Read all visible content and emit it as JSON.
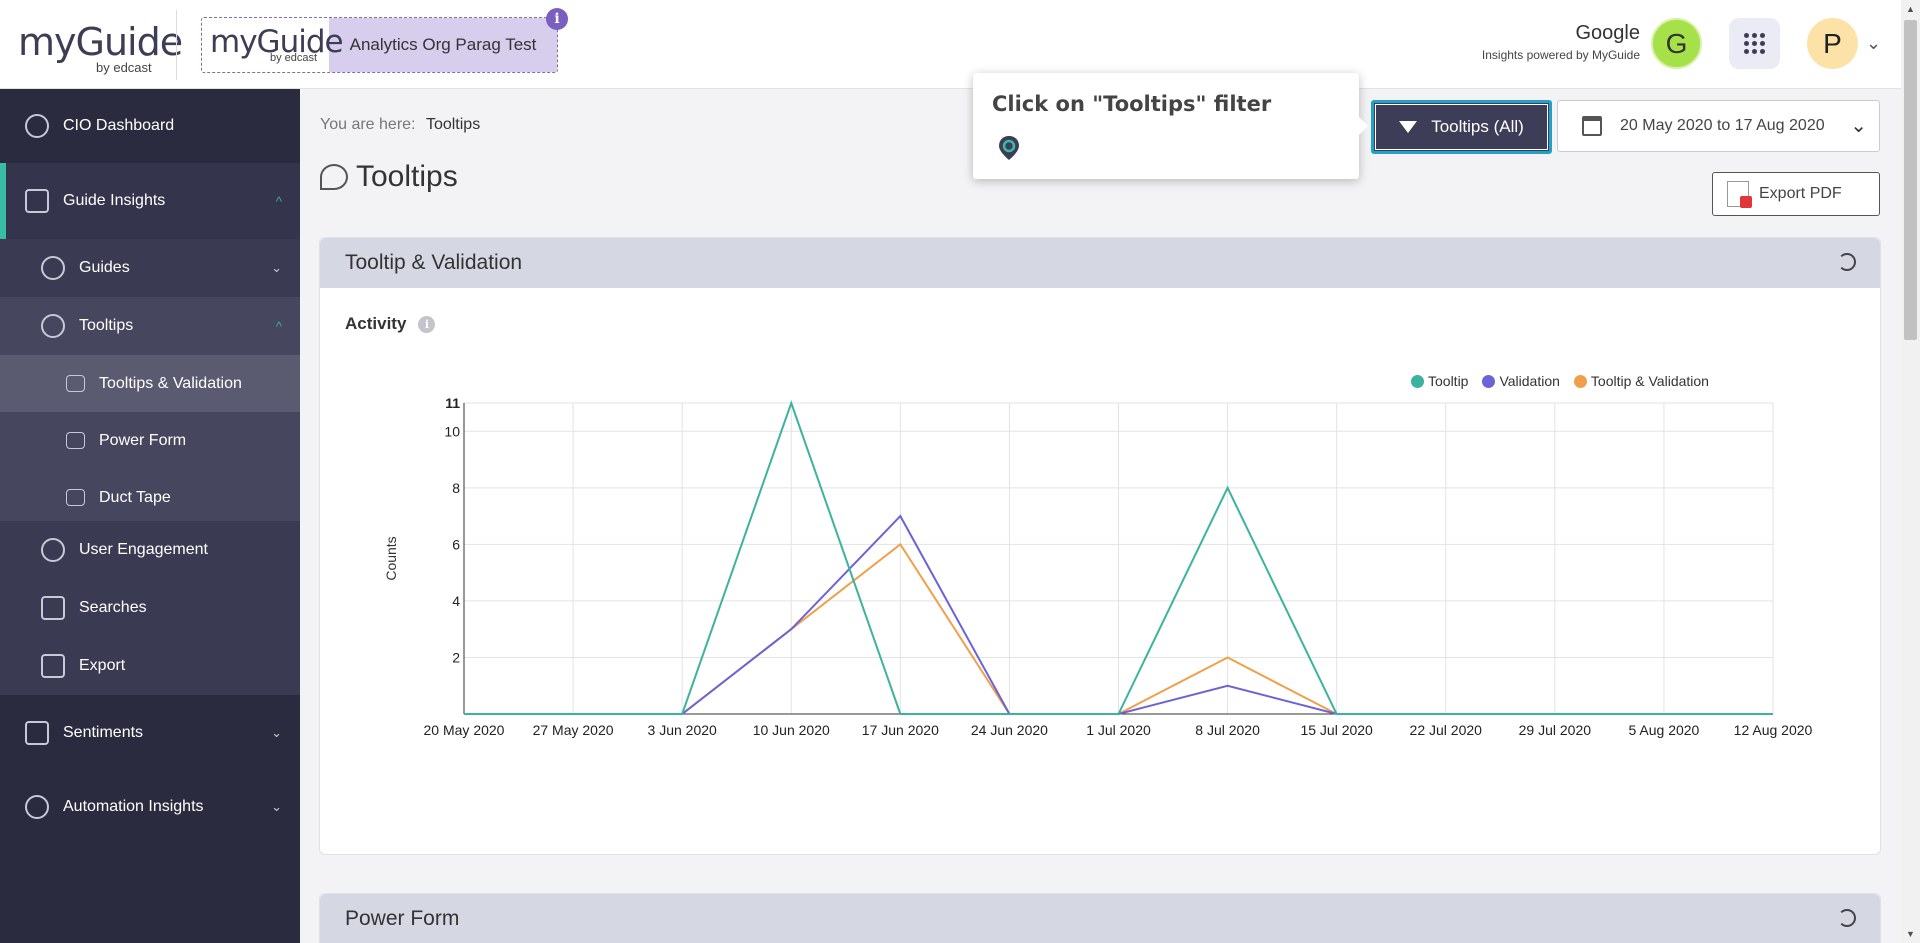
{
  "header": {
    "logo_text": "myGuide",
    "logo_by": "by edcast",
    "org_logo_text": "myGuide",
    "org_logo_by": "by edcast",
    "org_name": "Analytics Org Parag Test",
    "info_icon": "i",
    "account_name": "Google",
    "account_sub": "Insights powered by MyGuide",
    "account_initial": "G",
    "user_initial": "P",
    "user_chevron": "⌄"
  },
  "sidebar": {
    "items": [
      {
        "label": "CIO Dashboard",
        "icon": "gauge-icon"
      },
      {
        "label": "Guide Insights",
        "icon": "chart-icon"
      },
      {
        "label": "Guides",
        "icon": "compass-icon"
      },
      {
        "label": "Tooltips",
        "icon": "chat-bubbles-icon"
      },
      {
        "label": "Tooltips & Validation",
        "icon": "check-box-icon"
      },
      {
        "label": "Power Form",
        "icon": "form-icon"
      },
      {
        "label": "Duct Tape",
        "icon": "code-icon"
      },
      {
        "label": "User Engagement",
        "icon": "user-icon"
      },
      {
        "label": "Searches",
        "icon": "search-doc-icon"
      },
      {
        "label": "Export",
        "icon": "export-icon"
      },
      {
        "label": "Sentiments",
        "icon": "survey-icon"
      },
      {
        "label": "Automation Insights",
        "icon": "gear-icon"
      }
    ],
    "chevron_down": "⌄",
    "chevron_up": "^"
  },
  "breadcrumb": {
    "prefix": "You are here:",
    "current": "Tooltips"
  },
  "page_title": "Tooltips",
  "tooltip_popup": {
    "message": "Click on \"Tooltips\" filter"
  },
  "filter_button": {
    "label": "Tooltips (All)"
  },
  "date_picker": {
    "label": "20 May 2020 to 17 Aug 2020"
  },
  "export_button": {
    "label": "Export PDF"
  },
  "panels": {
    "tooltip_validation": {
      "title": "Tooltip & Validation",
      "section": "Activity",
      "info": "i"
    },
    "power_form": {
      "title": "Power Form"
    }
  },
  "colors": {
    "tooltip": "#3bb39e",
    "validation": "#6b63d6",
    "tooltip_validation": "#f0a04b",
    "sidebar_bg": "#2b2b40",
    "accent": "#38bca4"
  },
  "chart_data": {
    "type": "line",
    "ylabel": "Counts",
    "xlabel": "",
    "categories": [
      "20 May 2020",
      "27 May 2020",
      "3 Jun 2020",
      "10 Jun 2020",
      "17 Jun 2020",
      "24 Jun 2020",
      "1 Jul 2020",
      "8 Jul 2020",
      "15 Jul 2020",
      "22 Jul 2020",
      "29 Jul 2020",
      "5 Aug 2020",
      "12 Aug 2020"
    ],
    "ylim": [
      0,
      11
    ],
    "y_ticks": [
      2,
      4,
      6,
      8,
      10,
      11
    ],
    "grid": true,
    "legend": "top-right",
    "series": [
      {
        "name": "Tooltip",
        "color": "#3bb39e",
        "values": [
          0,
          0,
          0,
          11,
          0,
          0,
          0,
          8,
          0,
          0,
          0,
          0,
          0
        ]
      },
      {
        "name": "Validation",
        "color": "#6b63d6",
        "values": [
          0,
          0,
          0,
          3,
          7,
          0,
          0,
          1,
          0,
          0,
          0,
          0,
          0
        ]
      },
      {
        "name": "Tooltip & Validation",
        "color": "#f0a04b",
        "values": [
          0,
          0,
          0,
          3,
          6,
          0,
          0,
          2,
          0,
          0,
          0,
          0,
          0
        ]
      }
    ]
  }
}
